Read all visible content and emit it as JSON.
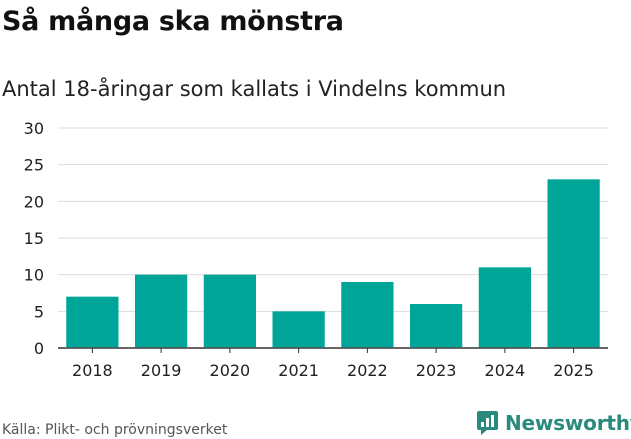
{
  "header": {
    "title": "Så många ska mönstra",
    "subtitle": "Antal 18-åringar som kallats i Vindelns kommun"
  },
  "footer": {
    "source": "Källa: Plikt- och prövningsverket",
    "brand": "Newsworthy",
    "brand_icon": "newsworthy-logo-icon"
  },
  "colors": {
    "bar": "#00a599",
    "grid": "#dddddd",
    "axis": "#333333",
    "brand": "#2a8a7c"
  },
  "chart_data": {
    "type": "bar",
    "title": "Så många ska mönstra",
    "subtitle": "Antal 18-åringar som kallats i Vindelns kommun",
    "categories": [
      "2018",
      "2019",
      "2020",
      "2021",
      "2022",
      "2023",
      "2024",
      "2025"
    ],
    "values": [
      7,
      10,
      10,
      5,
      9,
      6,
      11,
      23
    ],
    "xlabel": "",
    "ylabel": "",
    "ylim": [
      0,
      30
    ],
    "yticks": [
      0,
      5,
      10,
      15,
      20,
      25,
      30
    ],
    "grid": true,
    "legend": "none"
  }
}
